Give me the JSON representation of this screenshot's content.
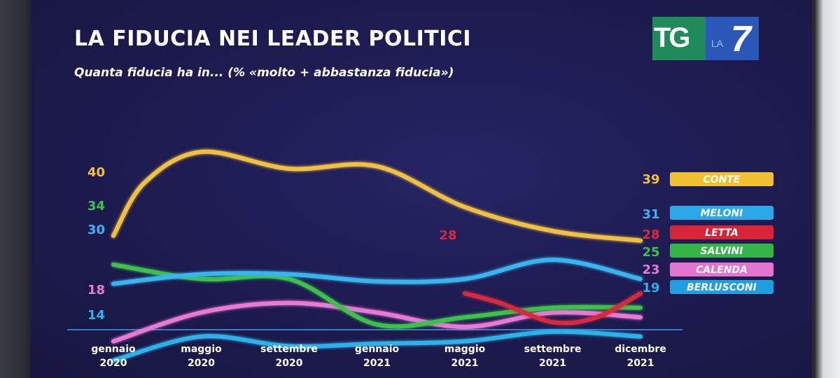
{
  "chart_data": {
    "type": "line",
    "title": "LA FIDUCIA NEI LEADER POLITICI",
    "subtitle": "Quanta fiducia ha in... (% «molto + abbastanza fiducia»)",
    "x_categories": [
      "gennaio 2020",
      "maggio 2020",
      "settembre 2020",
      "gennaio 2021",
      "maggio 2021",
      "settembre 2021",
      "dicembre 2021"
    ],
    "x_labels": [
      {
        "line1": "gennaio",
        "line2": "2020"
      },
      {
        "line1": "maggio",
        "line2": "2020"
      },
      {
        "line1": "settembre",
        "line2": "2020"
      },
      {
        "line1": "gennaio",
        "line2": "2021"
      },
      {
        "line1": "maggio",
        "line2": "2021"
      },
      {
        "line1": "settembre",
        "line2": "2021"
      },
      {
        "line1": "dicembre",
        "line2": "2021"
      }
    ],
    "ylim": [
      10,
      60
    ],
    "grid": false,
    "legend": "right",
    "series": [
      {
        "name": "CONTE",
        "color": "#f2c040",
        "badge_color": "#f0c030",
        "start_label": "40",
        "end_label": "39",
        "x": [
          0,
          0.35,
          1,
          2,
          3,
          4,
          5,
          6
        ],
        "values": [
          40,
          51,
          57.5,
          54,
          54.5,
          46,
          41,
          39
        ]
      },
      {
        "name": "MELONI",
        "color": "#39b4ee",
        "badge_color": "#2aa8e8",
        "start_label": "30",
        "end_label": "31",
        "x": [
          0,
          1,
          2,
          3,
          4,
          5,
          6
        ],
        "values": [
          30,
          32,
          32,
          30.5,
          31,
          35,
          31
        ]
      },
      {
        "name": "LETTA",
        "color": "#d92a3c",
        "badge_color": "#d82438",
        "start_label": "28",
        "end_label": "28",
        "x": [
          4,
          4.4,
          5,
          5.5,
          6
        ],
        "values": [
          28,
          26,
          22,
          23,
          28
        ]
      },
      {
        "name": "SALVINI",
        "color": "#3ec14a",
        "badge_color": "#33b548",
        "start_label": "34",
        "end_label": "25",
        "x": [
          0,
          1,
          2,
          3,
          4,
          5,
          6
        ],
        "values": [
          34,
          31,
          31,
          21.5,
          23,
          25,
          25
        ]
      },
      {
        "name": "CALENDA",
        "color": "#e87ad6",
        "badge_color": "#e274cf",
        "start_label": "18",
        "end_label": "23",
        "x": [
          0,
          1,
          2,
          3,
          4,
          5,
          6
        ],
        "values": [
          18,
          24,
          26,
          24,
          21,
          24,
          23
        ]
      },
      {
        "name": "BERLUSCONI",
        "color": "#2fb0e8",
        "badge_color": "#1f9ee0",
        "start_label": "14",
        "end_label": "19",
        "x": [
          0,
          1,
          2,
          3,
          4,
          5,
          6
        ],
        "values": [
          14,
          19,
          17,
          17.5,
          18,
          20,
          19
        ]
      }
    ]
  },
  "logo": {
    "left": "TG",
    "middle": "LA",
    "right": "7"
  }
}
